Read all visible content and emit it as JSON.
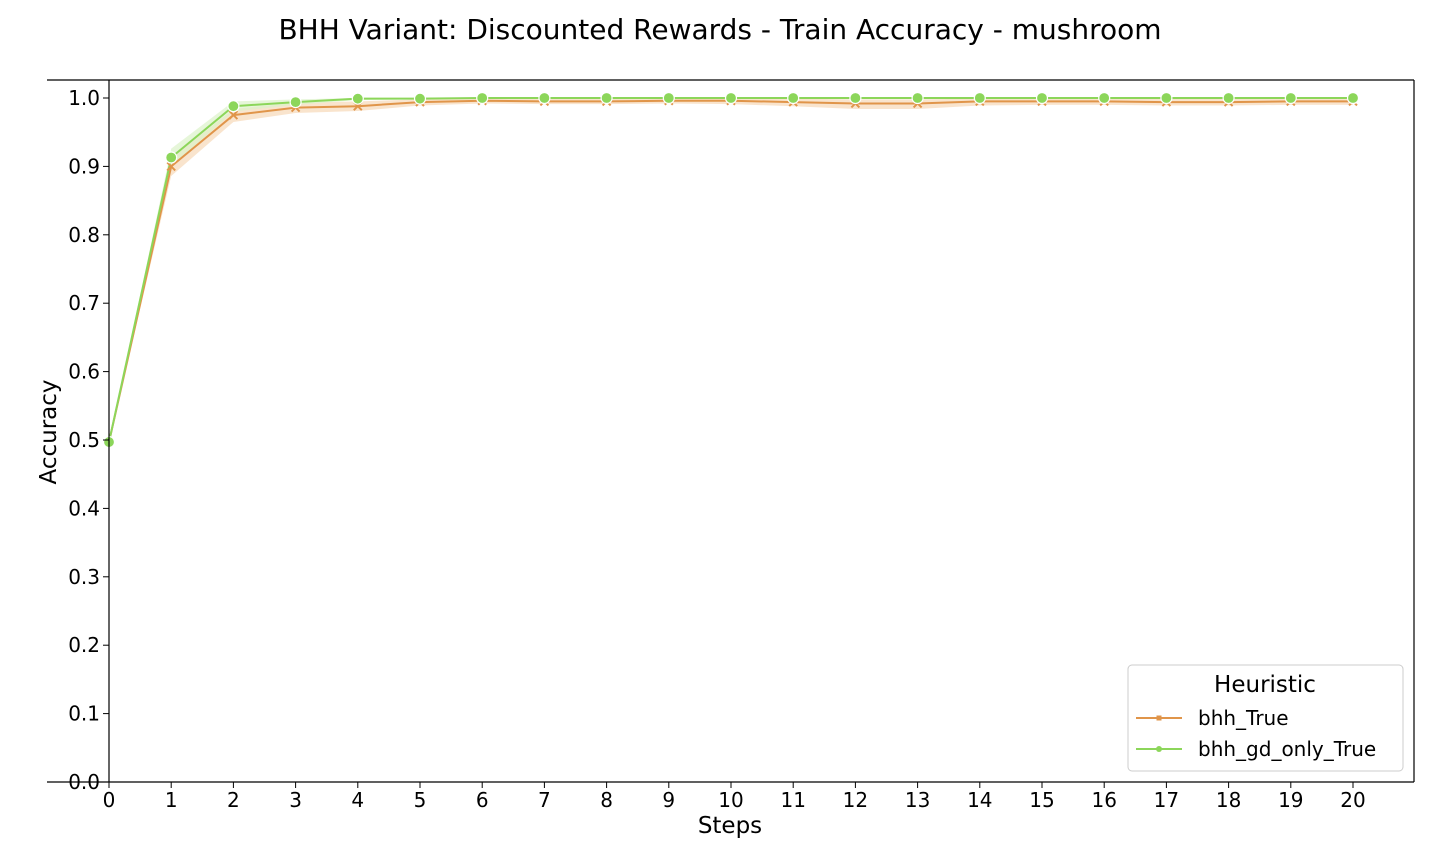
{
  "chart_data": {
    "type": "line",
    "title": "BHH Variant: Discounted Rewards - Train Accuracy - mushroom",
    "xlabel": "Steps",
    "ylabel": "Accuracy",
    "xlim": [
      0,
      20
    ],
    "ylim": [
      0.0,
      1.0
    ],
    "x_ticks": [
      "0",
      "1",
      "2",
      "3",
      "4",
      "5",
      "6",
      "7",
      "8",
      "9",
      "10",
      "11",
      "12",
      "13",
      "14",
      "15",
      "16",
      "17",
      "18",
      "19",
      "20"
    ],
    "y_ticks": [
      "0.0",
      "0.1",
      "0.2",
      "0.3",
      "0.4",
      "0.5",
      "0.6",
      "0.7",
      "0.8",
      "0.9",
      "1.0"
    ],
    "x": [
      0,
      1,
      2,
      3,
      4,
      5,
      6,
      7,
      8,
      9,
      10,
      11,
      12,
      13,
      14,
      15,
      16,
      17,
      18,
      19,
      20
    ],
    "grid": false,
    "legend": {
      "title": "Heuristic",
      "placement": "bottom-right"
    },
    "series": [
      {
        "name": "bhh_True",
        "color": "#e0954a",
        "band_color": "#f7d9b8",
        "marker": "x",
        "values": [
          0.497,
          0.9,
          0.975,
          0.986,
          0.988,
          0.994,
          0.996,
          0.995,
          0.995,
          0.996,
          0.996,
          0.994,
          0.992,
          0.992,
          0.995,
          0.995,
          0.995,
          0.994,
          0.994,
          0.995,
          0.995
        ],
        "lower": [
          0.497,
          0.886,
          0.965,
          0.978,
          0.981,
          0.989,
          0.992,
          0.991,
          0.991,
          0.992,
          0.991,
          0.988,
          0.984,
          0.984,
          0.989,
          0.99,
          0.99,
          0.989,
          0.989,
          0.99,
          0.99
        ],
        "upper": [
          0.497,
          0.912,
          0.984,
          0.993,
          0.995,
          0.998,
          0.999,
          0.999,
          0.999,
          0.999,
          0.999,
          0.999,
          0.998,
          0.998,
          0.999,
          0.999,
          0.999,
          0.999,
          0.999,
          0.999,
          0.999
        ]
      },
      {
        "name": "bhh_gd_only_True",
        "color": "#8cd65a",
        "band_color": "#dcf2c9",
        "marker": "o",
        "values": [
          0.497,
          0.913,
          0.988,
          0.994,
          0.999,
          0.999,
          1.0,
          1.0,
          1.0,
          1.0,
          1.0,
          1.0,
          1.0,
          1.0,
          1.0,
          1.0,
          1.0,
          1.0,
          1.0,
          1.0,
          1.0
        ],
        "lower": [
          0.497,
          0.9,
          0.98,
          0.99,
          0.997,
          0.998,
          0.999,
          0.999,
          0.999,
          0.999,
          0.999,
          0.999,
          0.999,
          0.999,
          0.999,
          0.999,
          0.999,
          0.999,
          0.999,
          0.999,
          0.999
        ],
        "upper": [
          0.497,
          0.926,
          0.995,
          0.998,
          1.0,
          1.0,
          1.0,
          1.0,
          1.0,
          1.0,
          1.0,
          1.0,
          1.0,
          1.0,
          1.0,
          1.0,
          1.0,
          1.0,
          1.0,
          1.0,
          1.0
        ]
      }
    ]
  }
}
